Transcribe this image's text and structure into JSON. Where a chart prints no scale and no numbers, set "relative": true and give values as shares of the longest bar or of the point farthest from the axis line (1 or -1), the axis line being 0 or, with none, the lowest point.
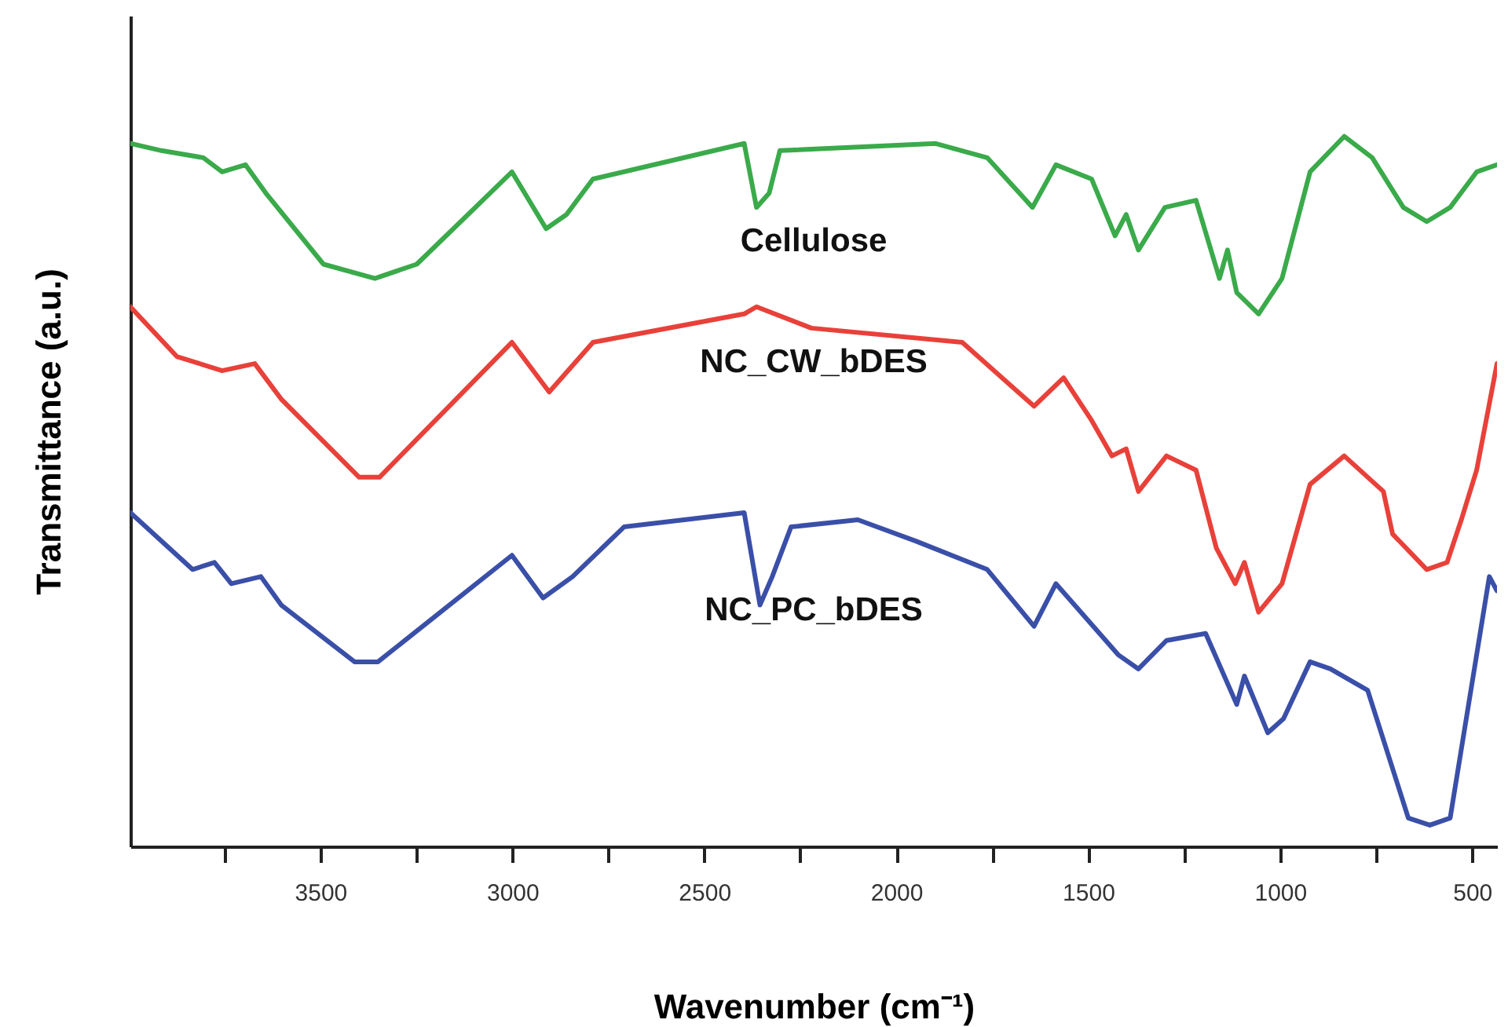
{
  "chart_data": {
    "type": "line",
    "xlabel": "Wavenumber (cm⁻¹)",
    "ylabel": "Transmittance (a.u.)",
    "relative": true,
    "grid": false,
    "line_style": "solid",
    "marker": "none",
    "xlim": [
      3995,
      435
    ],
    "xticks": [
      {
        "value": 3750,
        "label": null
      },
      3500,
      {
        "value": 3250,
        "label": null
      },
      3000,
      {
        "value": 2750,
        "label": null
      },
      2500,
      {
        "value": 2250,
        "label": null
      },
      2000,
      {
        "value": 1750,
        "label": null
      },
      1500,
      {
        "value": 1250,
        "label": null
      },
      1000,
      {
        "value": 750,
        "label": null
      },
      500
    ],
    "series": [
      {
        "name": "Cellulose",
        "color": "#3aaa4a",
        "x": [
          3995,
          3914,
          3805,
          3756,
          3695,
          3642,
          3492,
          3358,
          3249,
          3001,
          2912,
          2859,
          2790,
          2396,
          2364,
          2331,
          2303,
          1897,
          1763,
          1645,
          1584,
          1491,
          1430,
          1401,
          1369,
          1300,
          1219,
          1158,
          1137,
          1113,
          1056,
          995,
          922,
          833,
          760,
          679,
          618,
          557,
          488,
          435
        ],
        "values": [
          0.99,
          0.98,
          0.97,
          0.95,
          0.96,
          0.92,
          0.82,
          0.8,
          0.82,
          0.95,
          0.87,
          0.89,
          0.94,
          0.99,
          0.9,
          0.92,
          0.98,
          0.99,
          0.97,
          0.9,
          0.96,
          0.94,
          0.86,
          0.89,
          0.84,
          0.9,
          0.91,
          0.8,
          0.84,
          0.78,
          0.75,
          0.8,
          0.95,
          1.0,
          0.97,
          0.9,
          0.88,
          0.9,
          0.95,
          0.96
        ]
      },
      {
        "name": "NC_CW_bDES",
        "color": "#e8413a",
        "x": [
          3995,
          3874,
          3756,
          3671,
          3602,
          3399,
          3346,
          3001,
          2904,
          2790,
          2396,
          2364,
          2221,
          1828,
          1641,
          1564,
          1491,
          1438,
          1401,
          1369,
          1296,
          1219,
          1166,
          1117,
          1093,
          1056,
          995,
          922,
          833,
          731,
          707,
          618,
          565,
          528,
          488,
          435
        ],
        "values": [
          0.76,
          0.69,
          0.67,
          0.68,
          0.63,
          0.52,
          0.52,
          0.71,
          0.64,
          0.71,
          0.75,
          0.76,
          0.73,
          0.71,
          0.62,
          0.66,
          0.6,
          0.55,
          0.56,
          0.5,
          0.55,
          0.53,
          0.42,
          0.37,
          0.4,
          0.33,
          0.37,
          0.51,
          0.55,
          0.5,
          0.44,
          0.39,
          0.4,
          0.46,
          0.53,
          0.68
        ]
      },
      {
        "name": "NC_PC_bDES",
        "color": "#3a4fa8",
        "x": [
          3995,
          3833,
          3776,
          3732,
          3655,
          3602,
          3411,
          3350,
          3001,
          2920,
          2843,
          2709,
          2396,
          2355,
          2323,
          2274,
          2100,
          1949,
          1763,
          1641,
          1584,
          1422,
          1369,
          1296,
          1194,
          1113,
          1093,
          1032,
          991,
          922,
          869,
          772,
          666,
          610,
          557,
          455,
          435
        ],
        "values": [
          0.47,
          0.39,
          0.4,
          0.37,
          0.38,
          0.34,
          0.26,
          0.26,
          0.41,
          0.35,
          0.38,
          0.45,
          0.47,
          0.34,
          0.38,
          0.45,
          0.46,
          0.43,
          0.39,
          0.31,
          0.37,
          0.27,
          0.25,
          0.29,
          0.3,
          0.2,
          0.24,
          0.16,
          0.18,
          0.26,
          0.25,
          0.22,
          0.04,
          0.03,
          0.04,
          0.38,
          0.36
        ]
      }
    ]
  }
}
